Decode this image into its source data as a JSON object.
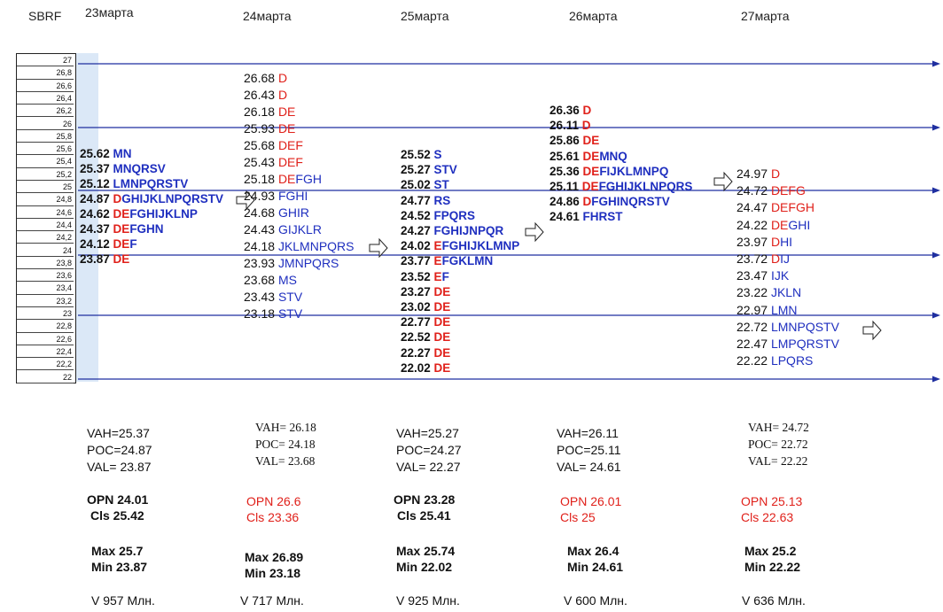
{
  "ticker": "SBRF",
  "scale_ticks": [
    "27",
    "26,8",
    "26,6",
    "26,4",
    "26,2",
    "26",
    "25,8",
    "25,6",
    "25,4",
    "25,2",
    "25",
    "24,8",
    "24,6",
    "24,4",
    "24,2",
    "24",
    "23,8",
    "23,6",
    "23,4",
    "23,2",
    "23",
    "22,8",
    "22,6",
    "22,4",
    "22,2",
    "22"
  ],
  "days": [
    {
      "date": "23марта",
      "profile": [
        {
          "price": "25.62",
          "red": "",
          "blue": "MN"
        },
        {
          "price": "25.37",
          "red": "",
          "blue": "MNQRSV"
        },
        {
          "price": "25.12",
          "red": "",
          "blue": "LMNPQRSTV"
        },
        {
          "price": "24.87",
          "red": "D",
          "blue": "GHIJKLNPQRSTV"
        },
        {
          "price": "24.62",
          "red": "DE",
          "blue": "FGHIJKLNP"
        },
        {
          "price": "24.37",
          "red": "DE",
          "blue": "FGHN"
        },
        {
          "price": "24.12",
          "red": "DE",
          "blue": "F"
        },
        {
          "price": "23.87",
          "red": "DE",
          "blue": ""
        }
      ],
      "vah": "VAH=25.37",
      "poc": "POC=24.87",
      "val": "VAL= 23.87",
      "opn": "OPN 24.01",
      "cls": "Cls 25.42",
      "max": "Max 25.7",
      "min": "Min 23.87",
      "vol": "V 957 Млн."
    },
    {
      "date": "24марта",
      "profile": [
        {
          "price": "26.68",
          "red": "D",
          "blue": ""
        },
        {
          "price": "26.43",
          "red": "D",
          "blue": ""
        },
        {
          "price": "26.18",
          "red": "DE",
          "blue": ""
        },
        {
          "price": "25.93",
          "red": "DE",
          "blue": ""
        },
        {
          "price": "25.68",
          "red": "DEF",
          "blue": ""
        },
        {
          "price": "25.43",
          "red": "DEF",
          "blue": ""
        },
        {
          "price": "25.18",
          "red": "DE",
          "blue": "FGH"
        },
        {
          "price": "24.93",
          "red": "",
          "blue": "FGHI"
        },
        {
          "price": "24.68",
          "red": "",
          "blue": "GHIR"
        },
        {
          "price": "24.43",
          "red": "",
          "blue": "GIJKLR"
        },
        {
          "price": "24.18",
          "red": "",
          "blue": "JKLMNPQRS"
        },
        {
          "price": "23.93",
          "red": "",
          "blue": "JMNPQRS"
        },
        {
          "price": "23.68",
          "red": "",
          "blue": "MS"
        },
        {
          "price": "23.43",
          "red": "",
          "blue": "STV"
        },
        {
          "price": "23.18",
          "red": "",
          "blue": "STV"
        }
      ],
      "vah": "VAH= 26.18",
      "poc": "POC= 24.18",
      "val": "VAL= 23.68",
      "opn": "OPN 26.6",
      "cls": "Cls 23.36",
      "max": "Max 26.89",
      "min": "Min 23.18",
      "vol": "V 717  Млн."
    },
    {
      "date": "25марта",
      "profile": [
        {
          "price": "25.52",
          "red": "",
          "blue": "S"
        },
        {
          "price": "25.27",
          "red": "",
          "blue": "STV"
        },
        {
          "price": "25.02",
          "red": "",
          "blue": "ST"
        },
        {
          "price": "24.77",
          "red": "",
          "blue": "RS"
        },
        {
          "price": "24.52",
          "red": "",
          "blue": "FPQRS"
        },
        {
          "price": "24.27",
          "red": "",
          "blue": "FGHIJNPQR"
        },
        {
          "price": "24.02",
          "red": "E",
          "blue": "FGHIJKLMNP"
        },
        {
          "price": "23.77",
          "red": "E",
          "blue": "FGKLMN"
        },
        {
          "price": "23.52",
          "red": "E",
          "blue": "F"
        },
        {
          "price": "23.27",
          "red": "DE",
          "blue": ""
        },
        {
          "price": "23.02",
          "red": "DE",
          "blue": ""
        },
        {
          "price": "22.77",
          "red": "DE",
          "blue": ""
        },
        {
          "price": "22.52",
          "red": "DE",
          "blue": ""
        },
        {
          "price": "22.27",
          "red": "DE",
          "blue": ""
        },
        {
          "price": "22.02",
          "red": "DE",
          "blue": ""
        }
      ],
      "vah": "VAH=25.27",
      "poc": "POC=24.27",
      "val": "VAL= 22.27",
      "opn": "OPN 23.28",
      "cls": "Cls 25.41",
      "max": "Max 25.74",
      "min": "Min 22.02",
      "vol": "V 925  Млн."
    },
    {
      "date": "26марта",
      "profile": [
        {
          "price": "26.36",
          "red": "D",
          "blue": ""
        },
        {
          "price": "26.11",
          "red": "D",
          "blue": ""
        },
        {
          "price": "25.86",
          "red": "DE",
          "blue": ""
        },
        {
          "price": "25.61",
          "red": "DE",
          "blue": "MNQ"
        },
        {
          "price": "25.36",
          "red": "DE",
          "blue": "FIJKLMNPQ"
        },
        {
          "price": "25.11",
          "red": "DE",
          "blue": "FGHIJKLNPQRS"
        },
        {
          "price": "24.86",
          "red": "D",
          "blue": "FGHINQRSTV"
        },
        {
          "price": "24.61",
          "red": "",
          "blue": "FHRST"
        }
      ],
      "vah": "VAH=26.11",
      "poc": "POC=25.11",
      "val": "VAL= 24.61",
      "opn": "OPN 26.01",
      "cls": "Cls 25",
      "max": "Max 26.4",
      "min": "Min 24.61",
      "vol": "V 600  Млн."
    },
    {
      "date": "27марта",
      "profile": [
        {
          "price": "24.97",
          "red": "D",
          "blue": ""
        },
        {
          "price": "24.72",
          "red": "DEFG",
          "blue": ""
        },
        {
          "price": "24.47",
          "red": "DEFGH",
          "blue": ""
        },
        {
          "price": "24.22",
          "red": "DE",
          "blue": "GHI"
        },
        {
          "price": "23.97",
          "red": "D",
          "blue": "HI"
        },
        {
          "price": "23.72",
          "red": "D",
          "blue": "IJ"
        },
        {
          "price": "23.47",
          "red": "",
          "blue": "IJK"
        },
        {
          "price": "23.22",
          "red": "",
          "blue": "JKLN"
        },
        {
          "price": "22.97",
          "red": "",
          "blue": "LMN"
        },
        {
          "price": "22.72",
          "red": "",
          "blue": "LMNPQSTV"
        },
        {
          "price": "22.47",
          "red": "",
          "blue": "LMPQRSTV"
        },
        {
          "price": "22.22",
          "red": "",
          "blue": "LPQRS"
        }
      ],
      "vah": "VAH= 24.72",
      "poc": "POC= 22.72",
      "val": "VAL= 22.22",
      "opn": "OPN 25.13",
      "cls": "Cls  22.63",
      "max": "Max 25.2",
      "min": "Min 22.22",
      "vol": "V 636  Млн."
    }
  ],
  "colors": {
    "up_letters": "#e0201a",
    "down_letters": "#1f2fbf",
    "lines": "#1f2fa0",
    "price": "#111111"
  },
  "chart_data": {
    "type": "table",
    "title": "",
    "ylim": [
      22,
      27
    ],
    "horizontal_levels": [
      27,
      26,
      25,
      24,
      23,
      22
    ],
    "grid": "horizontal lines at whole prices"
  }
}
